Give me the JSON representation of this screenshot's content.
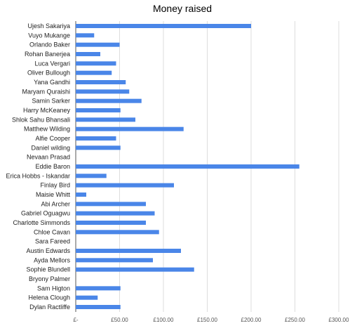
{
  "chart_data": {
    "type": "bar",
    "orientation": "horizontal",
    "title": "Money raised",
    "xlabel": "",
    "ylabel": "",
    "xlim": [
      0,
      300
    ],
    "grid": true,
    "legend": "none",
    "bar_color": "#4a86e8",
    "x_ticks": [
      {
        "value": 0,
        "label": "£-"
      },
      {
        "value": 50,
        "label": "£50.00"
      },
      {
        "value": 100,
        "label": "£100.00"
      },
      {
        "value": 150,
        "label": "£150.00"
      },
      {
        "value": 200,
        "label": "£200.00"
      },
      {
        "value": 250,
        "label": "£250.00"
      },
      {
        "value": 300,
        "label": "£300.00"
      }
    ],
    "categories": [
      "Ujesh Sakariya",
      "Vuyo Mukange",
      "Orlando Baker",
      "Rohan Banerjea",
      "Luca Vergari",
      "Oliver Bullough",
      "Yana Gandhi",
      "Maryam Quraishi",
      "Samin Sarker",
      "Harry McKeaney",
      "Shlok Sahu Bhansali",
      "Matthew Wilding",
      "Alfie Cooper",
      "Daniel wilding",
      "Nevaan Prasad",
      "Eddie Baron",
      "Erica Hobbs - Iskandar",
      "Finlay Bird",
      "Maisie Whitt",
      "Abi Archer",
      "Gabriel Oguagwu",
      "Charlotte Simmonds",
      "Chloe Cavan",
      "Sara Fareed",
      "Austin Edwards",
      "Ayda  Mellors",
      "Sophie Blundell",
      "Bryony Palmer",
      "Sam Higton",
      "Helena Clough",
      "Dylan Ractliffe"
    ],
    "values": [
      200,
      21,
      50,
      28,
      46,
      41,
      57,
      61,
      75,
      51,
      68,
      123,
      46,
      51,
      0,
      255,
      35,
      112,
      12,
      80,
      90,
      80,
      95,
      0,
      120,
      88,
      135,
      0,
      51,
      25,
      51
    ]
  }
}
